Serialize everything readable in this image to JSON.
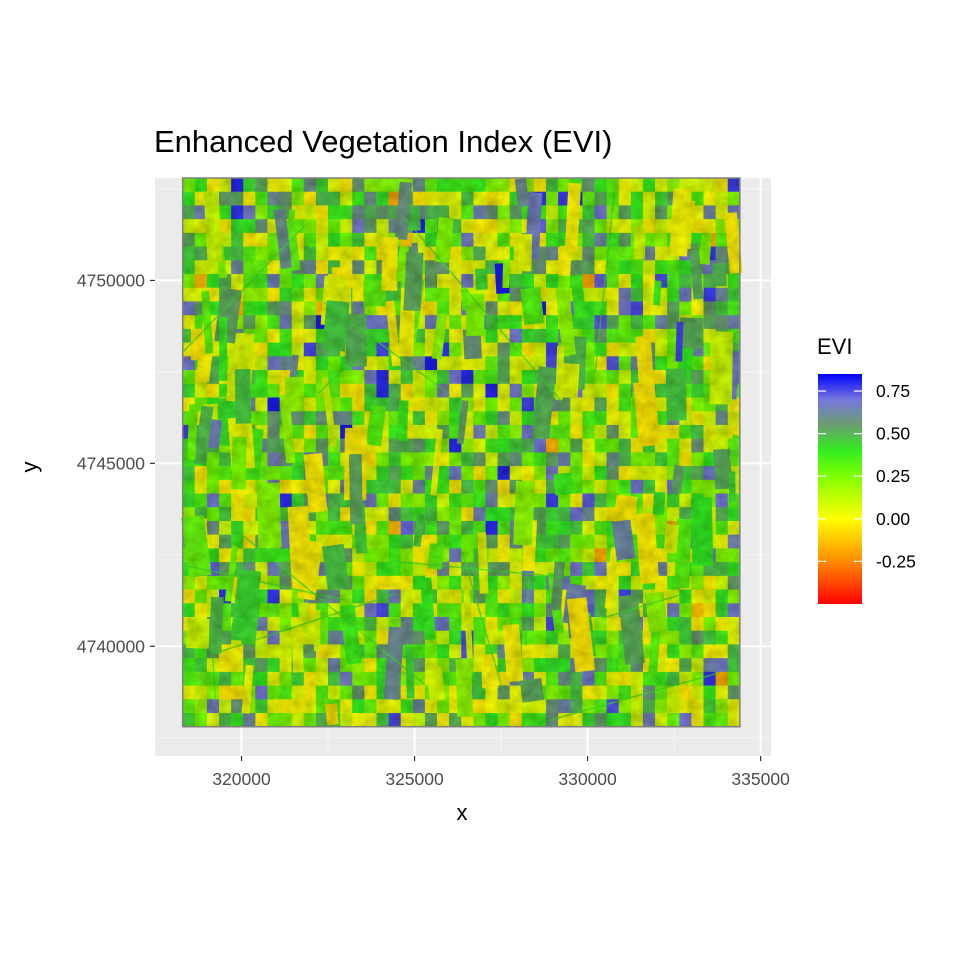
{
  "chart_data": {
    "type": "heatmap",
    "title": "Enhanced Vegetation Index (EVI)",
    "xlabel": "x",
    "ylabel": "y",
    "xlim": [
      317500,
      335300
    ],
    "ylim": [
      4737000,
      4752800
    ],
    "raster_extent": {
      "x": [
        318300,
        334400
      ],
      "y": [
        4737800,
        4752800
      ]
    },
    "x_ticks": [
      320000,
      325000,
      330000,
      335000
    ],
    "x_tick_labels": [
      "320000",
      "325000",
      "330000",
      "335000"
    ],
    "y_ticks": [
      4740000,
      4745000,
      4750000
    ],
    "y_tick_labels": [
      "4740000",
      "4745000",
      "4750000"
    ],
    "grid": true,
    "legend": {
      "title": "EVI",
      "placement": "right",
      "range": [
        -0.5,
        0.85
      ],
      "breaks": [
        0.75,
        0.5,
        0.25,
        0.0,
        -0.25
      ],
      "break_labels": [
        "0.75",
        "0.50",
        "0.25",
        "0.00",
        "-0.25"
      ],
      "colors": [
        {
          "value": -0.5,
          "color": "#ff0000"
        },
        {
          "value": -0.25,
          "color": "#ff8c00"
        },
        {
          "value": 0.0,
          "color": "#ffff00"
        },
        {
          "value": 0.25,
          "color": "#7fff00"
        },
        {
          "value": 0.4,
          "color": "#33ee22"
        },
        {
          "value": 0.55,
          "color": "#6a9e6e"
        },
        {
          "value": 0.7,
          "color": "#7777dd"
        },
        {
          "value": 0.85,
          "color": "#0000ff"
        }
      ]
    },
    "colors": {
      "panel_background": "#ebebeb",
      "grid_major": "#ffffff",
      "grid_minor": "#f5f5f5",
      "raster_border": "#808080"
    }
  }
}
